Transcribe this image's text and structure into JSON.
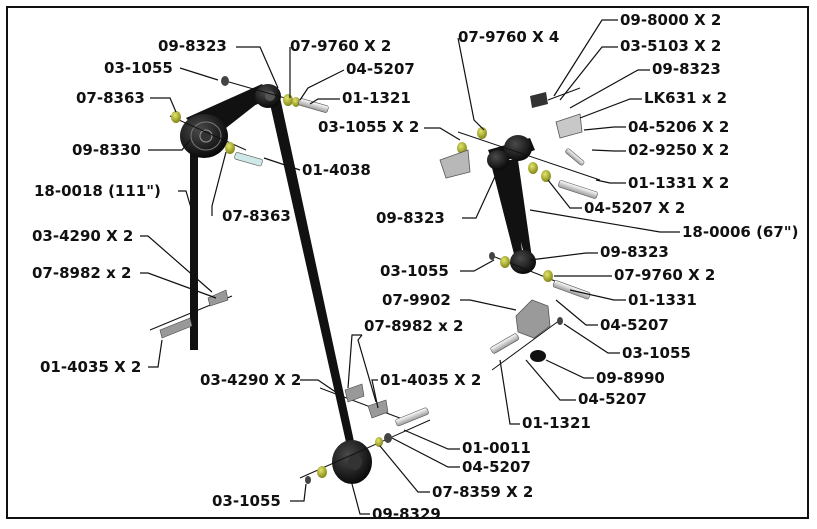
{
  "colors": {
    "belt": "#111111",
    "pulley": "#1a1a1a",
    "washer_yellow": "#b5b823",
    "bolt_silver": "#d9d9d9",
    "bracket_grey": "#9a9a9a",
    "leader": "#111111"
  },
  "labels": {
    "l01": "09-8323",
    "l02": "07-9760  X 2",
    "l03": "03-1055",
    "l04": "04-5207",
    "l05": "07-8363",
    "l06": "01-1321",
    "l07": "03-1055  X 2",
    "l08": "09-8330",
    "l09": "01-4038",
    "l10": "18-0018 (111\")",
    "l11": "07-8363",
    "l12": "03-4290 X 2",
    "l13": "07-8982 x 2",
    "l14": "01-4035 X 2",
    "l15": "07-9760  X 4",
    "l16": "09-8000  X 2",
    "l17": "03-5103  X 2",
    "l18": "09-8323",
    "l19": "LK631 x 2",
    "l20": "04-5206  X 2",
    "l21": "02-9250  X 2",
    "l22": "01-1331  X 2",
    "l23": "04-5207  X 2",
    "l24": "09-8323",
    "l25": "18-0006  (67\")",
    "l26": "09-8323",
    "l27": "03-1055",
    "l28": "07-9760 X 2",
    "l29": "07-9902",
    "l30": "01-1331",
    "l31": "04-5207",
    "l32": "03-1055",
    "l33": "07-8982 x 2",
    "l34": "03-4290 X 2",
    "l35": "01-4035 X 2",
    "l36": "09-8990",
    "l37": "04-5207",
    "l38": "01-1321",
    "l39": "01-0011",
    "l40": "04-5207",
    "l41": "07-8359 X 2",
    "l42": "03-1055",
    "l43": "09-8329"
  }
}
